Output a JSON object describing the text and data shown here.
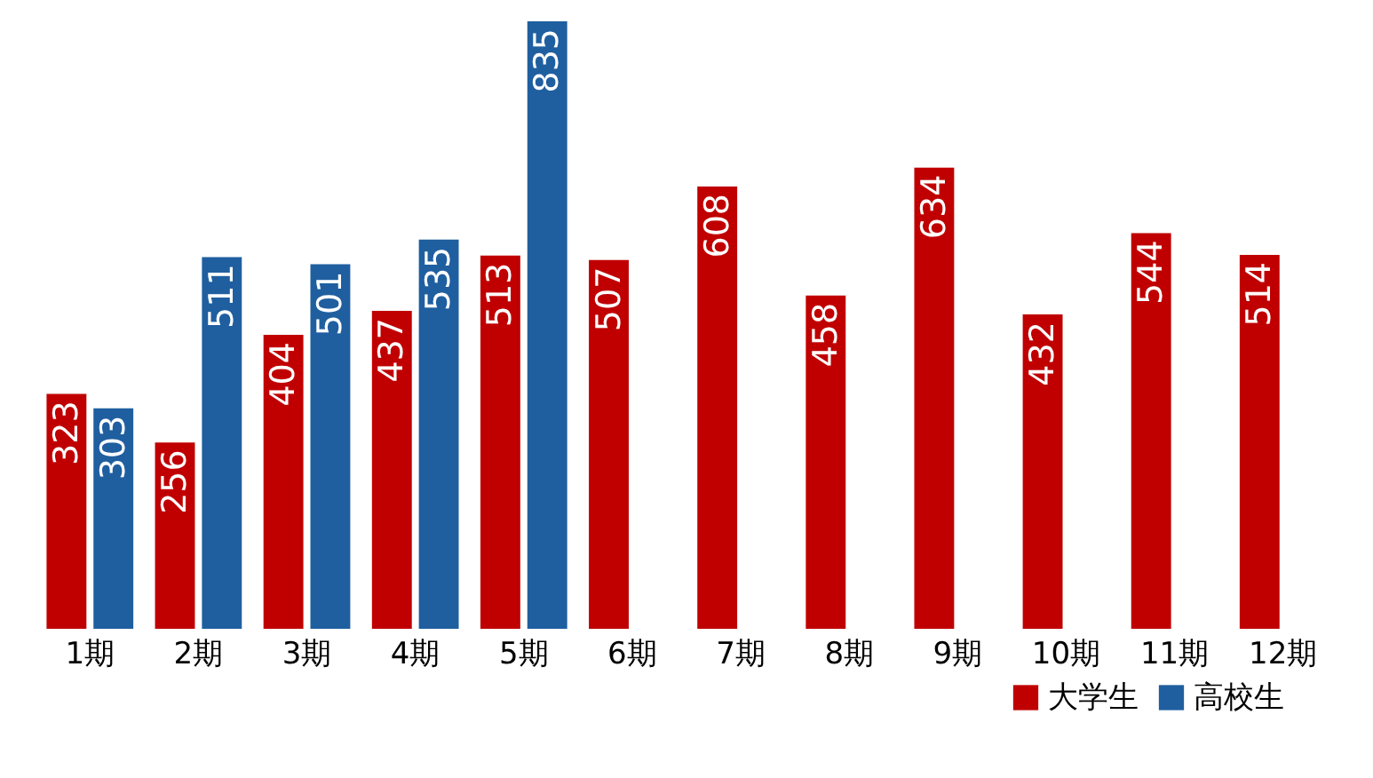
{
  "chart_data": {
    "type": "bar",
    "categories": [
      "1期",
      "2期",
      "3期",
      "4期",
      "5期",
      "6期",
      "7期",
      "8期",
      "9期",
      "10期",
      "11期",
      "12期"
    ],
    "series": [
      {
        "name": "大学生",
        "color": "#c00000",
        "values": [
          323,
          256,
          404,
          437,
          513,
          507,
          608,
          458,
          634,
          432,
          544,
          514
        ]
      },
      {
        "name": "高校生",
        "color": "#1f5fa0",
        "values": [
          303,
          511,
          501,
          535,
          835,
          null,
          null,
          null,
          null,
          null,
          null,
          null
        ]
      }
    ],
    "data_labels": true,
    "legend": "bottom right",
    "tick_labels": "x"
  }
}
